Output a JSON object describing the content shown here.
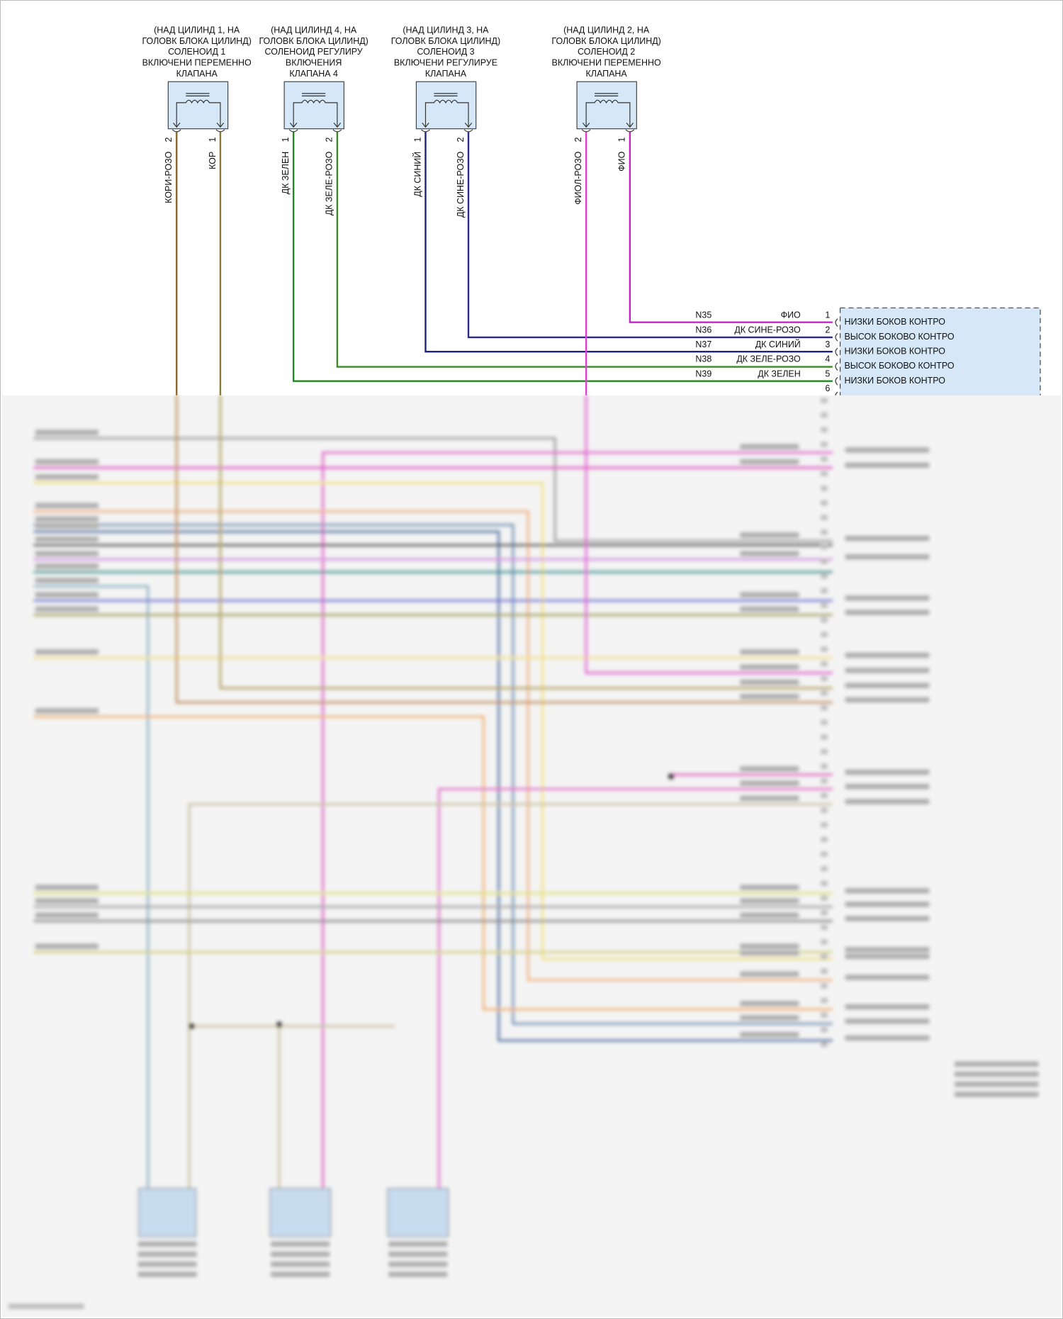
{
  "solenoids": [
    {
      "title": [
        "(НАД ЦИЛИНД 1, НА",
        "ГОЛОВК БЛОКА ЦИЛИНД)",
        "СОЛЕНОИД 1",
        "ВКЛЮЧЕНИ ПЕРЕМЕННО",
        "КЛАПАНА"
      ],
      "wires": [
        {
          "pin": "2",
          "label": "КОРИ-РОЗО",
          "color": "#8a6a2a"
        },
        {
          "pin": "1",
          "label": "КОР",
          "color": "#8a7a30"
        }
      ]
    },
    {
      "title": [
        "(НАД ЦИЛИНД 4, НА",
        "ГОЛОВК БЛОКА ЦИЛИНД)",
        "СОЛЕНОИД РЕГУЛИРУ",
        "ВКЛЮЧЕНИЯ",
        "КЛАПАНА 4"
      ],
      "wires": [
        {
          "pin": "1",
          "label": "ДК ЗЕЛЕН",
          "color": "#1f8a1f"
        },
        {
          "pin": "2",
          "label": "ДК ЗЕЛЕ-РОЗО",
          "color": "#3a8a2a"
        }
      ]
    },
    {
      "title": [
        "(НАД ЦИЛИНД 3, НА",
        "ГОЛОВК БЛОКА ЦИЛИНД)",
        "СОЛЕНОИД 3",
        "ВКЛЮЧЕНИ РЕГУЛИРУЕ",
        "КЛАПАНА"
      ],
      "wires": [
        {
          "pin": "1",
          "label": "ДК СИНИЙ",
          "color": "#1a237e"
        },
        {
          "pin": "2",
          "label": "ДК СИНЕ-РОЗО",
          "color": "#2a2a8a"
        }
      ]
    },
    {
      "title": [
        "(НАД ЦИЛИНД 2, НА",
        "ГОЛОВК БЛОКА ЦИЛИНД)",
        "СОЛЕНОИД 2",
        "ВКЛЮЧЕНИ ПЕРЕМЕННО",
        "КЛАПАНА"
      ],
      "wires": [
        {
          "pin": "2",
          "label": "ФИОЛ-РОЗО",
          "color": "#e040d0"
        },
        {
          "pin": "1",
          "label": "ФИО",
          "color": "#d020c8"
        }
      ]
    }
  ],
  "connector": {
    "rows": [
      {
        "circuit": "N35",
        "color_label": "ФИО",
        "pin": "1",
        "function": "НИЗКИ БОКОВ КОНТРО",
        "color": "#d020c8"
      },
      {
        "circuit": "N36",
        "color_label": "ДК СИНЕ-РОЗО",
        "pin": "2",
        "function": "ВЫСОК БОКОВО КОНТРО",
        "color": "#2a2a8a"
      },
      {
        "circuit": "N37",
        "color_label": "ДК СИНИЙ",
        "pin": "3",
        "function": "НИЗКИ БОКОВ КОНТРО",
        "color": "#1a237e"
      },
      {
        "circuit": "N38",
        "color_label": "ДК ЗЕЛЕ-РОЗО",
        "pin": "4",
        "function": "ВЫСОК БОКОВО КОНТРО",
        "color": "#3a8a2a"
      },
      {
        "circuit": "N39",
        "color_label": "ДК ЗЕЛЕН",
        "pin": "5",
        "function": "НИЗКИ БОКОВ КОНТРО",
        "color": "#1f8a1f"
      },
      {
        "circuit": "",
        "color_label": "",
        "pin": "6",
        "function": "",
        "color": ""
      }
    ],
    "fill": "#d6e8f8"
  }
}
